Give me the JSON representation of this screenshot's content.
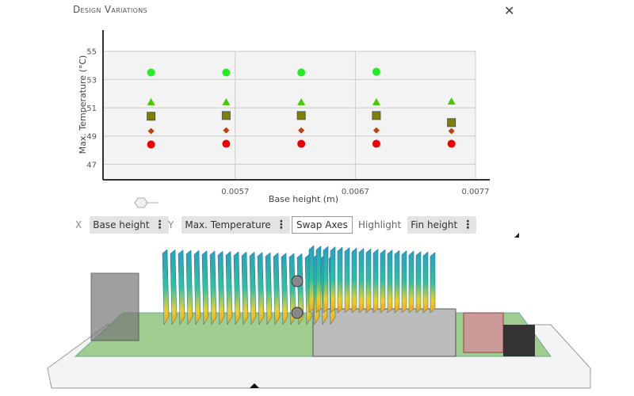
{
  "window": {
    "title": "Design Variations",
    "close_icon": "close-icon"
  },
  "controls": {
    "x_label": "X",
    "x_value": "Base height",
    "y_label": "Y",
    "y_value": "Max. Temperature",
    "swap_label": "Swap Axes",
    "highlight_label": "Highlight",
    "highlight_value": "Fin height",
    "menu_icon": "vertical-dots-icon"
  },
  "chart_data": {
    "type": "scatter",
    "xlabel": "Base height (m)",
    "ylabel": "Max. Temperature (°C)",
    "x_ticks": [
      "0.0057",
      "0.0067",
      "0.0077"
    ],
    "y_ticks": [
      "47",
      "49",
      "51",
      "53",
      "55"
    ],
    "xlim": [
      0.0046,
      0.0077
    ],
    "ylim": [
      45.9,
      56.5
    ],
    "grid": true,
    "x": [
      0.005,
      0.005625,
      0.00625,
      0.006875,
      0.0075
    ],
    "series": [
      {
        "marker": "circle",
        "color": "#22ee22",
        "values": [
          53.5,
          53.5,
          53.5,
          53.55,
          null
        ]
      },
      {
        "marker": "triangle",
        "color": "#44cc00",
        "values": [
          51.4,
          51.4,
          51.4,
          51.4,
          51.45
        ]
      },
      {
        "marker": "square",
        "color": "#808000",
        "values": [
          50.4,
          50.45,
          50.45,
          50.45,
          49.95
        ]
      },
      {
        "marker": "diamond",
        "color": "#c04010",
        "values": [
          49.35,
          49.4,
          49.4,
          49.4,
          49.35
        ]
      },
      {
        "marker": "circle",
        "color": "#ee0000",
        "values": [
          48.4,
          48.45,
          48.45,
          48.45,
          48.45
        ]
      }
    ]
  }
}
